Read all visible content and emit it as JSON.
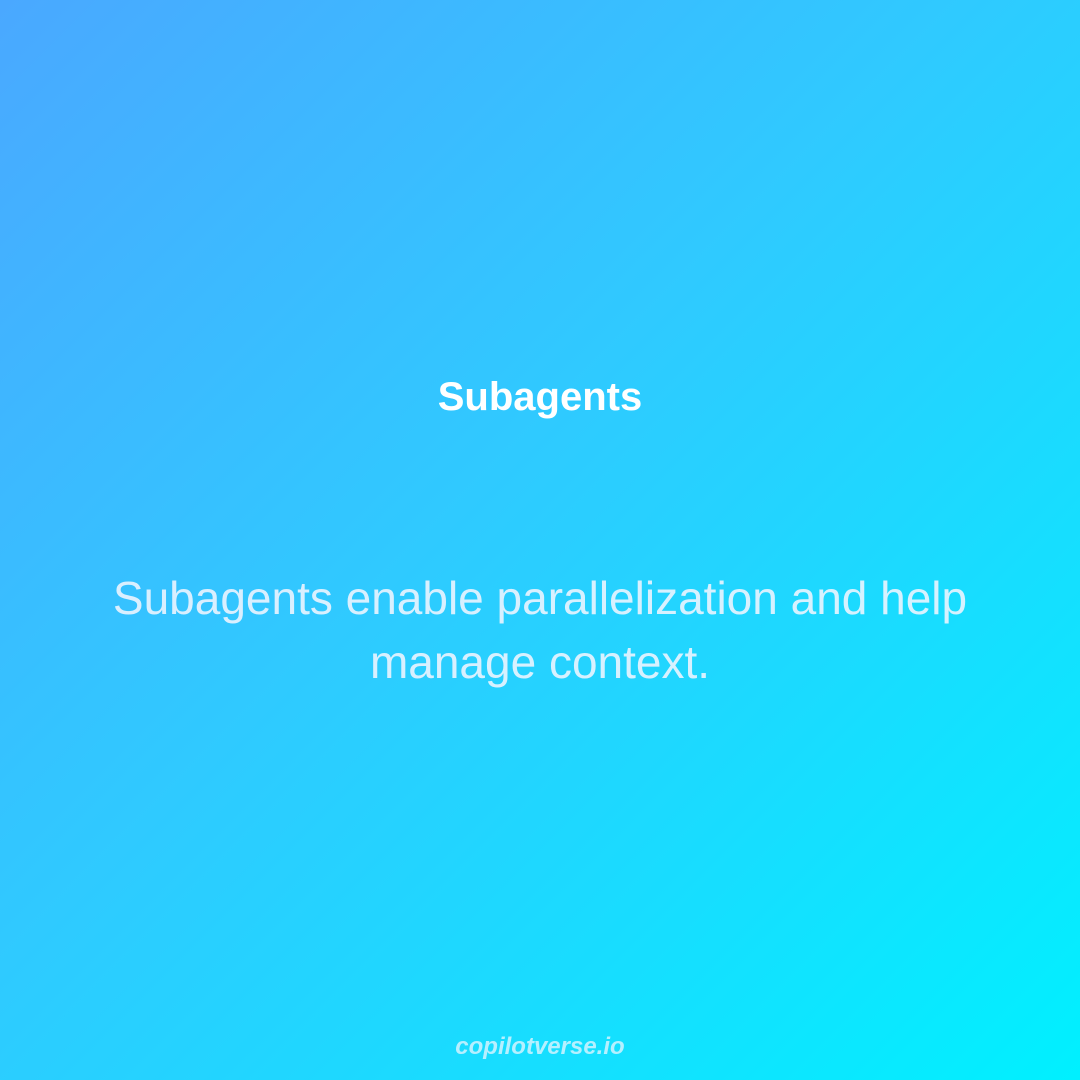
{
  "slide": {
    "title": "Subagents",
    "body": "Subagents enable parallelization and help manage context.",
    "footer": "copilotverse.io"
  },
  "colors": {
    "gradient_start": "#4aa8ff",
    "gradient_end": "#00f0ff",
    "title_color": "#ffffff"
  }
}
